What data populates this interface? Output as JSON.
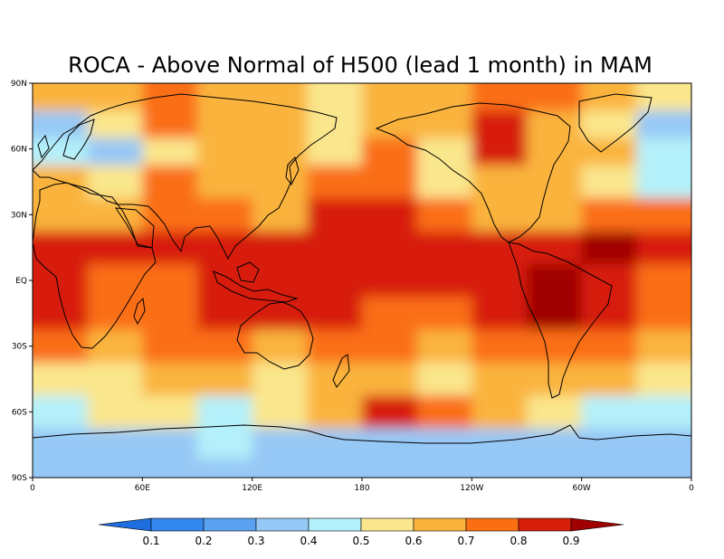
{
  "title": "ROCA - Above Normal of H500 (lead 1 month) in MAM",
  "axes": {
    "x_ticks": [
      {
        "lon": 0,
        "label": "0"
      },
      {
        "lon": 60,
        "label": "60E"
      },
      {
        "lon": 120,
        "label": "120E"
      },
      {
        "lon": 180,
        "label": "180"
      },
      {
        "lon": 240,
        "label": "120W"
      },
      {
        "lon": 300,
        "label": "60W"
      },
      {
        "lon": 360,
        "label": "0"
      }
    ],
    "y_ticks": [
      {
        "lat": 90,
        "label": "90N"
      },
      {
        "lat": 60,
        "label": "60N"
      },
      {
        "lat": 30,
        "label": "30N"
      },
      {
        "lat": 0,
        "label": "EQ"
      },
      {
        "lat": -30,
        "label": "30S"
      },
      {
        "lat": -60,
        "label": "60S"
      },
      {
        "lat": -90,
        "label": "90S"
      }
    ]
  },
  "colorbar": {
    "levels": [
      0.1,
      0.2,
      0.3,
      0.4,
      0.5,
      0.6,
      0.7,
      0.8,
      0.9
    ],
    "labels": [
      "0.1",
      "0.2",
      "0.3",
      "0.4",
      "0.5",
      "0.6",
      "0.7",
      "0.8",
      "0.9"
    ],
    "colors": [
      "#1e6ee0",
      "#3388f0",
      "#5aa2f0",
      "#96c8f5",
      "#b4f0fa",
      "#fae68c",
      "#fab43c",
      "#fa6e14",
      "#d71e0a",
      "#a00000"
    ]
  },
  "chart_data": {
    "type": "heatmap",
    "lon_range": [
      0,
      360
    ],
    "lat_range": [
      -90,
      90
    ],
    "field": "ROCA above-normal H500, lead 1 month, MAM",
    "lat_band_classes": [
      {
        "lat": 85,
        "classes": [
          6,
          6,
          7,
          6,
          6,
          5,
          6,
          6,
          7,
          7,
          6,
          5
        ]
      },
      {
        "lat": 70,
        "classes": [
          3,
          5,
          7,
          6,
          6,
          5,
          6,
          6,
          8,
          6,
          5,
          3
        ]
      },
      {
        "lat": 60,
        "classes": [
          4,
          3,
          5,
          6,
          6,
          5,
          7,
          5,
          8,
          6,
          6,
          4
        ]
      },
      {
        "lat": 45,
        "classes": [
          6,
          5,
          7,
          6,
          6,
          7,
          7,
          5,
          6,
          6,
          5,
          4
        ]
      },
      {
        "lat": 30,
        "classes": [
          6,
          6,
          7,
          7,
          6,
          8,
          8,
          7,
          6,
          6,
          7,
          7
        ]
      },
      {
        "lat": 15,
        "classes": [
          8,
          8,
          8,
          8,
          8,
          8,
          8,
          8,
          8,
          8,
          9,
          8
        ]
      },
      {
        "lat": 0,
        "classes": [
          8,
          7,
          7,
          8,
          8,
          8,
          8,
          8,
          8,
          9,
          8,
          7
        ]
      },
      {
        "lat": -15,
        "classes": [
          8,
          7,
          7,
          8,
          8,
          8,
          7,
          7,
          8,
          9,
          8,
          7
        ]
      },
      {
        "lat": -30,
        "classes": [
          7,
          6,
          7,
          7,
          6,
          7,
          7,
          6,
          7,
          7,
          7,
          6
        ]
      },
      {
        "lat": -45,
        "classes": [
          5,
          5,
          6,
          6,
          5,
          6,
          6,
          5,
          6,
          6,
          6,
          5
        ]
      },
      {
        "lat": -60,
        "classes": [
          4,
          5,
          5,
          4,
          5,
          6,
          8,
          7,
          6,
          5,
          4,
          4
        ]
      },
      {
        "lat": -75,
        "classes": [
          3,
          3,
          3,
          4,
          3,
          3,
          3,
          3,
          3,
          3,
          3,
          3
        ]
      },
      {
        "lat": -88,
        "classes": [
          3,
          3,
          3,
          3,
          3,
          3,
          3,
          3,
          3,
          3,
          3,
          3
        ]
      }
    ]
  }
}
